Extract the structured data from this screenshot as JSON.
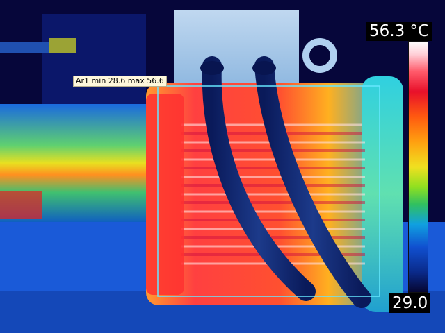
{
  "roi": {
    "label": "Ar1 min 28.6 max 56.6",
    "min": 28.6,
    "max": 56.6
  },
  "scale": {
    "max_label": "56.3 °C",
    "min_label": "29.0",
    "max": 56.3,
    "min": 29.0
  },
  "colors": {
    "roi_box": "#66e8ff",
    "background": "#06063a"
  }
}
